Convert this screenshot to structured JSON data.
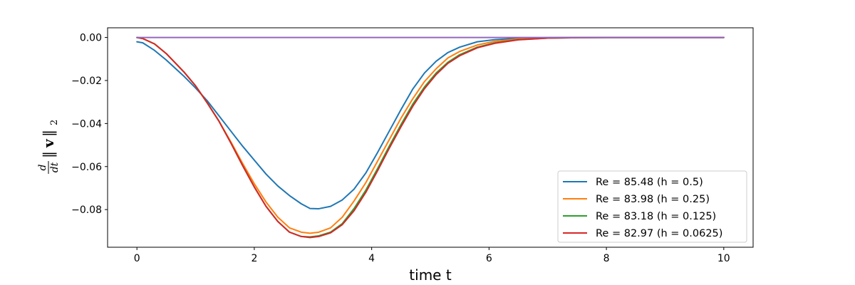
{
  "chart_data": {
    "type": "line",
    "xlabel": "time t",
    "ylabel_parts": {
      "numerator": "d",
      "denominator": "dt",
      "bars_left": "‖",
      "vector": "v",
      "bars_right": "‖",
      "subscript": "2"
    },
    "xlim": [
      -0.5,
      10.5
    ],
    "ylim": [
      -0.0975,
      0.0045
    ],
    "xticks": [
      0,
      2,
      4,
      6,
      8,
      10
    ],
    "xtick_labels": [
      "0",
      "2",
      "4",
      "6",
      "8",
      "10"
    ],
    "yticks": [
      0.0,
      -0.02,
      -0.04,
      -0.06,
      -0.08
    ],
    "ytick_labels": [
      "0.00",
      "−0.02",
      "−0.04",
      "−0.06",
      "−0.08"
    ],
    "grid": false,
    "legend_position": "lower-right",
    "series": [
      {
        "name": "Re = 85.48 (h = 0.5)",
        "color": "#1f77b4",
        "x": [
          0,
          0.1,
          0.3,
          0.5,
          0.8,
          1.0,
          1.2,
          1.4,
          1.6,
          1.8,
          2.0,
          2.2,
          2.4,
          2.6,
          2.8,
          2.95,
          3.1,
          3.3,
          3.5,
          3.7,
          3.9,
          4.1,
          4.3,
          4.5,
          4.7,
          4.9,
          5.1,
          5.3,
          5.5,
          5.8,
          6.1,
          6.5,
          7.0,
          7.5,
          8.0,
          9.0,
          10.0
        ],
        "y": [
          -0.002,
          -0.0025,
          -0.006,
          -0.0105,
          -0.018,
          -0.0235,
          -0.0295,
          -0.0365,
          -0.0435,
          -0.0505,
          -0.057,
          -0.0635,
          -0.069,
          -0.0735,
          -0.0773,
          -0.0795,
          -0.0796,
          -0.0785,
          -0.0755,
          -0.0705,
          -0.063,
          -0.0535,
          -0.0435,
          -0.0335,
          -0.024,
          -0.0165,
          -0.011,
          -0.007,
          -0.0045,
          -0.002,
          -0.001,
          -0.0004,
          -0.0001,
          0,
          0,
          0,
          0
        ]
      },
      {
        "name": "Re = 83.98 (h = 0.25)",
        "color": "#ff7f0e",
        "x": [
          0,
          0.1,
          0.3,
          0.5,
          0.8,
          1.0,
          1.2,
          1.4,
          1.6,
          1.8,
          2.0,
          2.2,
          2.4,
          2.6,
          2.8,
          2.95,
          3.1,
          3.3,
          3.5,
          3.7,
          3.9,
          4.1,
          4.3,
          4.5,
          4.7,
          4.9,
          5.1,
          5.3,
          5.5,
          5.8,
          6.1,
          6.5,
          7.0,
          7.5,
          8.0,
          9.0,
          10.0
        ],
        "y": [
          0,
          -0.0005,
          -0.003,
          -0.0075,
          -0.016,
          -0.0225,
          -0.0305,
          -0.039,
          -0.0485,
          -0.0585,
          -0.068,
          -0.0765,
          -0.0835,
          -0.0885,
          -0.0905,
          -0.091,
          -0.0905,
          -0.0885,
          -0.0835,
          -0.076,
          -0.0675,
          -0.0575,
          -0.0475,
          -0.0375,
          -0.0285,
          -0.0205,
          -0.0145,
          -0.0095,
          -0.0065,
          -0.0035,
          -0.0018,
          -0.0007,
          -0.0002,
          0,
          0,
          0,
          0
        ]
      },
      {
        "name": "Re = 83.18 (h = 0.125)",
        "color": "#2ca02c",
        "x": [
          0,
          0.1,
          0.3,
          0.5,
          0.8,
          1.0,
          1.2,
          1.4,
          1.6,
          1.8,
          2.0,
          2.2,
          2.4,
          2.6,
          2.8,
          2.95,
          3.1,
          3.3,
          3.5,
          3.7,
          3.9,
          4.1,
          4.3,
          4.5,
          4.7,
          4.9,
          5.1,
          5.3,
          5.5,
          5.8,
          6.1,
          6.5,
          7.0,
          7.5,
          8.0,
          9.0,
          10.0
        ],
        "y": [
          0,
          -0.0005,
          -0.003,
          -0.0075,
          -0.016,
          -0.0225,
          -0.0305,
          -0.039,
          -0.049,
          -0.0595,
          -0.0695,
          -0.0785,
          -0.0855,
          -0.0905,
          -0.0925,
          -0.0927,
          -0.0922,
          -0.0905,
          -0.0865,
          -0.0795,
          -0.071,
          -0.061,
          -0.0505,
          -0.0405,
          -0.031,
          -0.023,
          -0.0165,
          -0.0115,
          -0.008,
          -0.0045,
          -0.0025,
          -0.001,
          -0.0003,
          -0.0001,
          0,
          0,
          0
        ]
      },
      {
        "name": "Re = 82.97 (h = 0.0625)",
        "color": "#d62728",
        "x": [
          0,
          0.1,
          0.3,
          0.5,
          0.8,
          1.0,
          1.2,
          1.4,
          1.6,
          1.8,
          2.0,
          2.2,
          2.4,
          2.6,
          2.8,
          2.95,
          3.1,
          3.3,
          3.5,
          3.7,
          3.9,
          4.1,
          4.3,
          4.5,
          4.7,
          4.9,
          5.1,
          5.3,
          5.5,
          5.8,
          6.1,
          6.5,
          7.0,
          7.5,
          8.0,
          9.0,
          10.0
        ],
        "y": [
          0,
          -0.0005,
          -0.003,
          -0.0075,
          -0.016,
          -0.0225,
          -0.0305,
          -0.039,
          -0.049,
          -0.0595,
          -0.0695,
          -0.0785,
          -0.0855,
          -0.0905,
          -0.0925,
          -0.093,
          -0.0925,
          -0.0908,
          -0.087,
          -0.0805,
          -0.072,
          -0.062,
          -0.0515,
          -0.0415,
          -0.032,
          -0.0238,
          -0.0172,
          -0.012,
          -0.0085,
          -0.0048,
          -0.0027,
          -0.0011,
          -0.0003,
          -0.0001,
          0,
          0,
          0
        ]
      },
      {
        "name": "",
        "color": "#9467bd",
        "x": [
          0,
          10
        ],
        "y": [
          0,
          0
        ]
      }
    ]
  }
}
